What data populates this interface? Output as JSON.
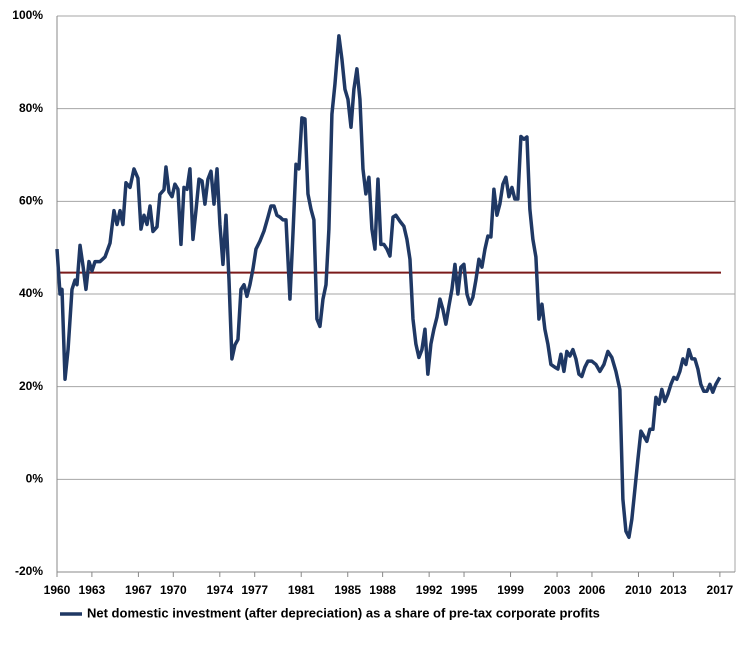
{
  "chart_data": {
    "type": "line",
    "xlim": [
      1960,
      2018.3
    ],
    "xticks": [
      1960,
      1963,
      1967,
      1970,
      1974,
      1977,
      1981,
      1985,
      1988,
      1992,
      1995,
      1999,
      2003,
      2006,
      2010,
      2013,
      2017
    ],
    "ylim": [
      -20,
      100
    ],
    "yticks": [
      {
        "value": -20,
        "label": "-20%"
      },
      {
        "value": 0,
        "label": "0%"
      },
      {
        "value": 20,
        "label": "20%"
      },
      {
        "value": 40,
        "label": "40%"
      },
      {
        "value": 60,
        "label": "60%"
      },
      {
        "value": 80,
        "label": "80%"
      },
      {
        "value": 100,
        "label": "100%"
      }
    ],
    "grid": true,
    "legend": "bottom",
    "reference_line": {
      "value": 44.6,
      "color": "#7b1a1a"
    },
    "series": [
      {
        "name": "Net domestic investment (after depreciation) as a share of pre-tax corporate profits",
        "color": "#1f3864",
        "x": [
          1960.0,
          1960.26,
          1960.43,
          1960.69,
          1960.95,
          1961.29,
          1961.55,
          1961.72,
          1961.98,
          1962.24,
          1962.49,
          1962.75,
          1963.01,
          1963.27,
          1963.7,
          1964.13,
          1964.56,
          1964.9,
          1965.16,
          1965.42,
          1965.67,
          1965.93,
          1966.28,
          1966.62,
          1966.96,
          1967.22,
          1967.48,
          1967.74,
          1968.0,
          1968.25,
          1968.6,
          1968.85,
          1969.2,
          1969.37,
          1969.63,
          1969.89,
          1970.14,
          1970.4,
          1970.66,
          1970.92,
          1971.18,
          1971.43,
          1971.69,
          1971.95,
          1972.21,
          1972.47,
          1972.72,
          1972.98,
          1973.24,
          1973.5,
          1973.76,
          1974.01,
          1974.27,
          1974.53,
          1974.79,
          1975.04,
          1975.3,
          1975.56,
          1975.82,
          1976.08,
          1976.33,
          1976.59,
          1976.85,
          1977.11,
          1977.45,
          1977.8,
          1978.14,
          1978.4,
          1978.66,
          1978.91,
          1979.17,
          1979.43,
          1979.69,
          1980.03,
          1980.29,
          1980.55,
          1980.8,
          1981.06,
          1981.32,
          1981.58,
          1981.84,
          1982.09,
          1982.35,
          1982.61,
          1982.87,
          1983.13,
          1983.38,
          1983.64,
          1983.9,
          1984.24,
          1984.5,
          1984.76,
          1985.02,
          1985.28,
          1985.53,
          1985.79,
          1986.05,
          1986.31,
          1986.56,
          1986.82,
          1987.08,
          1987.34,
          1987.6,
          1987.85,
          1988.11,
          1988.37,
          1988.63,
          1988.89,
          1989.14,
          1989.49,
          1989.83,
          1990.09,
          1990.35,
          1990.61,
          1990.86,
          1991.12,
          1991.38,
          1991.64,
          1991.89,
          1992.15,
          1992.41,
          1992.67,
          1992.93,
          1993.18,
          1993.44,
          1993.7,
          1993.96,
          1994.22,
          1994.47,
          1994.73,
          1994.99,
          1995.25,
          1995.51,
          1995.76,
          1996.02,
          1996.28,
          1996.54,
          1996.8,
          1997.05,
          1997.31,
          1997.57,
          1997.83,
          1998.08,
          1998.34,
          1998.6,
          1998.86,
          1999.12,
          1999.37,
          1999.63,
          1999.89,
          2000.15,
          2000.41,
          2000.66,
          2000.92,
          2001.18,
          2001.44,
          2001.7,
          2001.95,
          2002.21,
          2002.47,
          2002.81,
          2003.07,
          2003.33,
          2003.59,
          2003.84,
          2004.1,
          2004.36,
          2004.62,
          2004.88,
          2005.13,
          2005.39,
          2005.65,
          2005.99,
          2006.34,
          2006.68,
          2007.03,
          2007.37,
          2007.71,
          2008.06,
          2008.4,
          2008.66,
          2008.92,
          2009.18,
          2009.43,
          2009.69,
          2009.95,
          2010.21,
          2010.47,
          2010.72,
          2010.98,
          2011.24,
          2011.5,
          2011.76,
          2012.01,
          2012.27,
          2012.53,
          2012.79,
          2013.04,
          2013.3,
          2013.56,
          2013.82,
          2014.08,
          2014.33,
          2014.59,
          2014.85,
          2015.11,
          2015.36,
          2015.62,
          2015.88,
          2016.14,
          2016.39,
          2016.65,
          2016.99
        ],
        "values": [
          49.7,
          40,
          41,
          21.6,
          28,
          41,
          43,
          42,
          50.5,
          46,
          41,
          47,
          45,
          47,
          47,
          48,
          51,
          58,
          55,
          58,
          55,
          64,
          63,
          67,
          65,
          54,
          57,
          55,
          59,
          53.5,
          54.5,
          61.5,
          62.5,
          67.4,
          62,
          61,
          63.7,
          62.6,
          50.7,
          63,
          62.6,
          67,
          51.8,
          58,
          64.8,
          64.4,
          59.4,
          64.8,
          66.5,
          59.4,
          67,
          55,
          46.4,
          57,
          43,
          26,
          29,
          30.2,
          41,
          42,
          39.5,
          42,
          45.4,
          49.7,
          51.4,
          53.6,
          56.6,
          59,
          59,
          57,
          56.6,
          56,
          56,
          38.9,
          53,
          68,
          67,
          78,
          77.8,
          61.6,
          58.3,
          56,
          34.6,
          33,
          38.9,
          42,
          54,
          78.8,
          85.3,
          95.7,
          90.7,
          84.2,
          82,
          76,
          84.2,
          88.6,
          82,
          67,
          61.6,
          65.2,
          54,
          49.7,
          64.8,
          50.7,
          50.7,
          49.7,
          48.2,
          56.6,
          57,
          55.7,
          54.6,
          51.8,
          47.5,
          34.6,
          29.2,
          26.3,
          28,
          32.4,
          22.7,
          29.2,
          32.4,
          35,
          38.9,
          36.7,
          33.5,
          37.4,
          41,
          46.4,
          40,
          45.8,
          46.4,
          40,
          37.8,
          39.3,
          43,
          47.5,
          45.8,
          49.7,
          52.5,
          52.3,
          62.6,
          57,
          59.4,
          63.7,
          65.2,
          61,
          63,
          60.5,
          60.5,
          74,
          73.4,
          73.9,
          58.3,
          51.8,
          48,
          34.6,
          37.8,
          32.4,
          29.2,
          24.8,
          24.2,
          23.8,
          27,
          23.3,
          27.6,
          26.6,
          28,
          26,
          22.7,
          22.2,
          24.2,
          25.5,
          25.5,
          24.8,
          23.3,
          24.8,
          27.6,
          26.3,
          23.3,
          19.4,
          -4.3,
          -11.2,
          -12.5,
          -8.6,
          -2.2,
          4.3,
          10.4,
          9.3,
          8.2,
          10.8,
          10.8,
          17.7,
          16.2,
          19.4,
          16.8,
          18.4,
          20.5,
          22,
          21.6,
          23.3,
          26,
          24.8,
          28,
          26,
          26,
          23.8,
          20.5,
          19,
          19,
          20.5,
          18.8,
          20.5,
          22
        ]
      }
    ]
  }
}
